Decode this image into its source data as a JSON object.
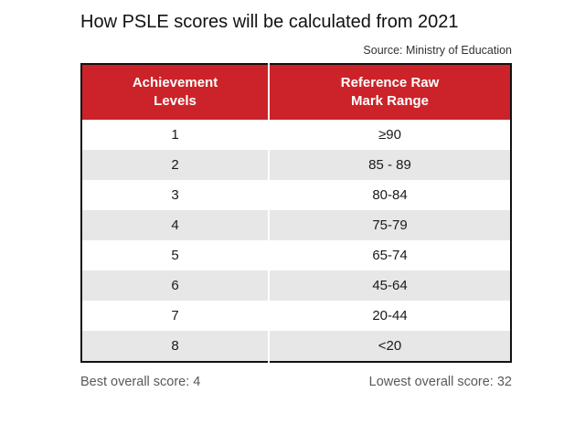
{
  "title": "How PSLE scores will be calculated from 2021",
  "source": "Source: Ministry of Education",
  "colors": {
    "header_bg": "#cb2329",
    "header_text": "#ffffff",
    "row_alt_bg": "#e7e7e7",
    "border": "#111111",
    "footer_text": "#595959"
  },
  "table": {
    "headers": [
      "Achievement\nLevels",
      "Reference Raw\nMark Range"
    ]
  },
  "chart_data": {
    "type": "table",
    "title": "How PSLE scores will be calculated from 2021",
    "source": "Source: Ministry of Education",
    "columns": [
      "Achievement Levels",
      "Reference Raw Mark Range"
    ],
    "rows": [
      [
        "1",
        "≥90"
      ],
      [
        "2",
        "85 - 89"
      ],
      [
        "3",
        "80-84"
      ],
      [
        "4",
        "75-79"
      ],
      [
        "5",
        "65-74"
      ],
      [
        "6",
        "45-64"
      ],
      [
        "7",
        "20-44"
      ],
      [
        "8",
        "<20"
      ]
    ],
    "notes": {
      "best_overall_score": 4,
      "lowest_overall_score": 32
    }
  },
  "footer": {
    "left": "Best overall score: 4",
    "right": "Lowest overall score: 32"
  }
}
